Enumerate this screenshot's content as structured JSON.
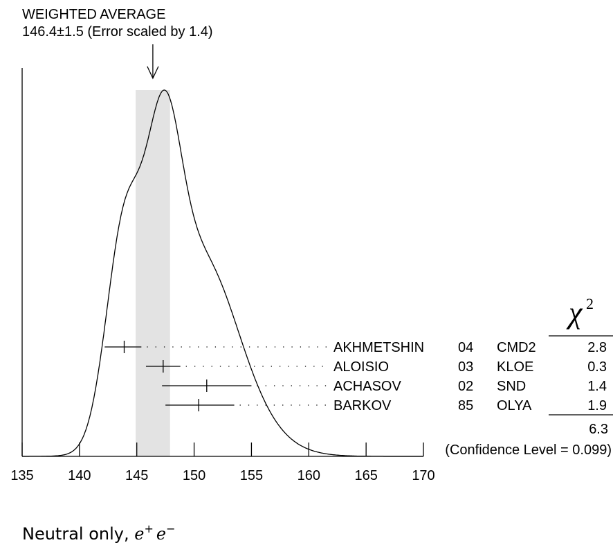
{
  "chart_data": {
    "type": "ideogram",
    "title_line1": "WEIGHTED AVERAGE",
    "title_line2": "146.4±1.5 (Error scaled by 1.4)",
    "weighted_average": 146.4,
    "error": 1.5,
    "xlim": [
      135,
      170
    ],
    "x_ticks": [
      "135",
      "140",
      "145",
      "150",
      "155",
      "160",
      "165",
      "170"
    ],
    "xlabel": {
      "prefix": "Neutral only,",
      "e1": "e",
      "sup1": "+",
      "e2": "e",
      "sup2": "−"
    },
    "chi2_header": {
      "symbol": "χ",
      "power": "2"
    },
    "measurements": [
      {
        "author": "AKHMETSHIN",
        "year": "04",
        "experiment": "CMD2",
        "chi2": "2.8",
        "value": 143.9,
        "err_low": 1.7,
        "err_high": 1.5
      },
      {
        "author": "ALOISIO",
        "year": "03",
        "experiment": "KLOE",
        "chi2": "0.3",
        "value": 147.3,
        "err_low": 1.5,
        "err_high": 1.5
      },
      {
        "author": "ACHASOV",
        "year": "02",
        "experiment": "SND",
        "chi2": "1.4",
        "value": 151.1,
        "err_low": 3.9,
        "err_high": 3.9
      },
      {
        "author": "BARKOV",
        "year": "85",
        "experiment": "OLYA",
        "chi2": "1.9",
        "value": 150.4,
        "err_low": 2.9,
        "err_high": 3.1
      }
    ],
    "chi2_total": "6.3",
    "confidence_level": "(Confidence Level = 0.099)",
    "band_color": "#e3e3e3"
  }
}
